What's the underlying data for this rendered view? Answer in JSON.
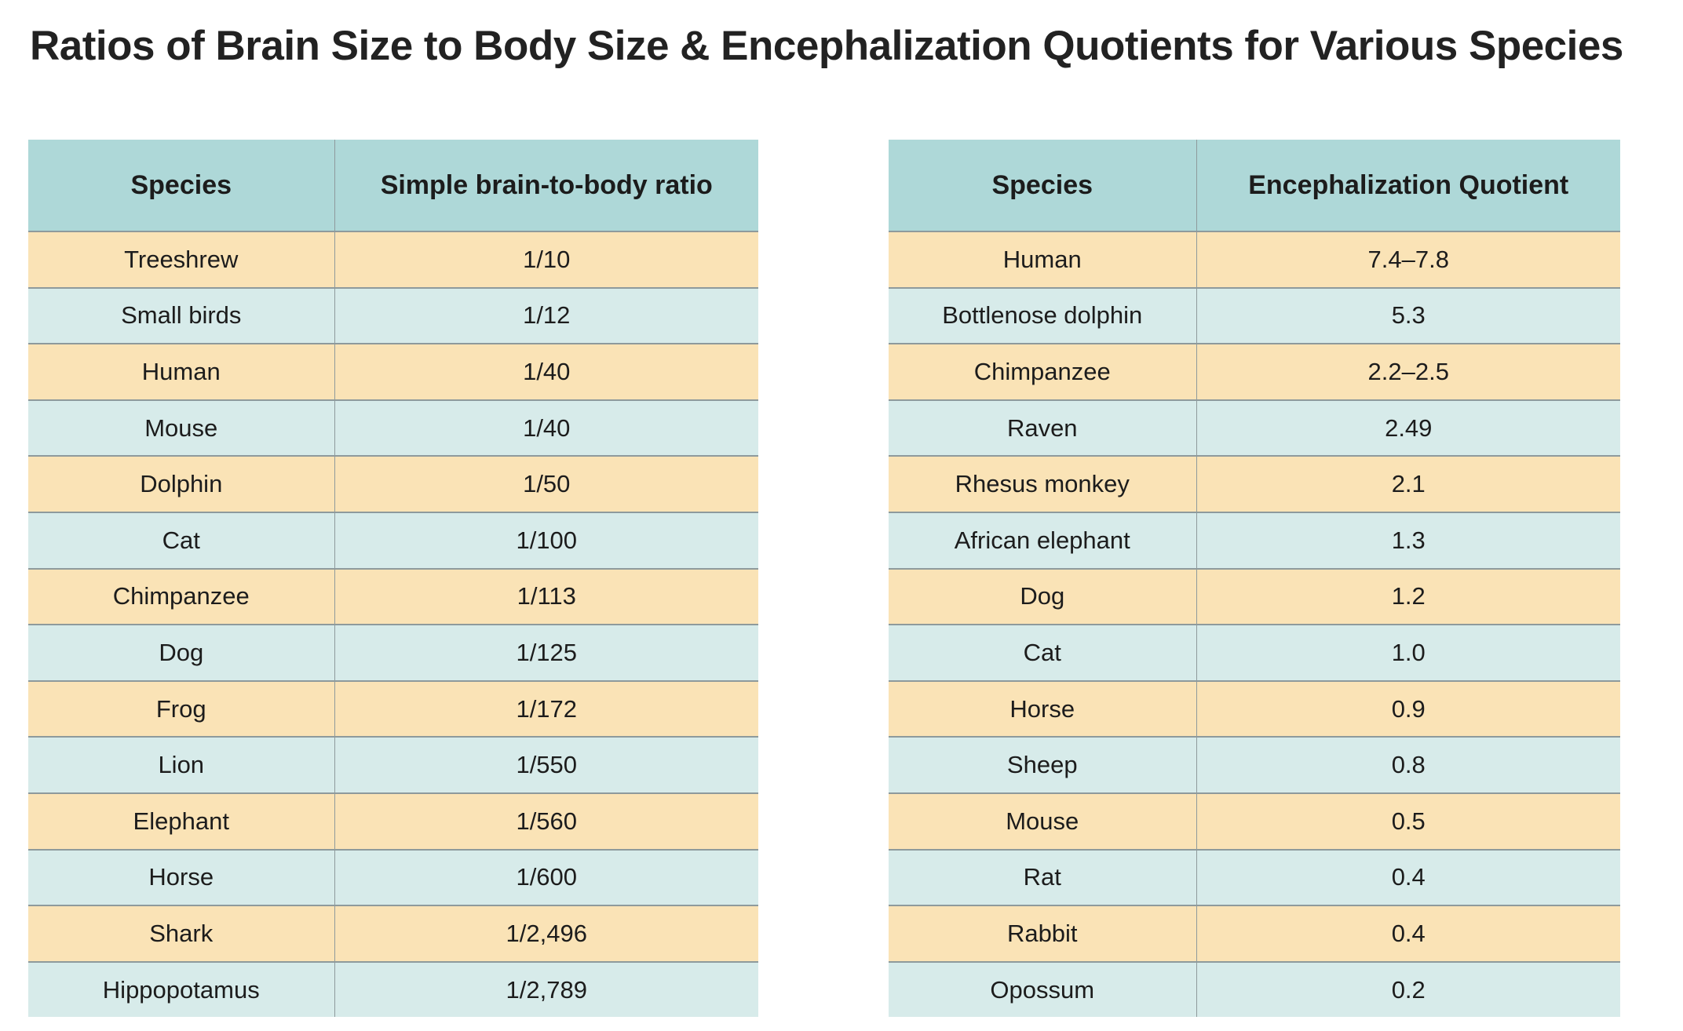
{
  "title": "Ratios of Brain Size to Body Size & Encephalization Quotients for Various Species",
  "colors": {
    "header": "#aed8d8",
    "row_odd": "#fae3b6",
    "row_even": "#d7ebea"
  },
  "ratio_table": {
    "headers": [
      "Species",
      "Simple brain-to-body ratio"
    ],
    "rows": [
      [
        "Treeshrew",
        "1/10"
      ],
      [
        "Small birds",
        "1/12"
      ],
      [
        "Human",
        "1/40"
      ],
      [
        "Mouse",
        "1/40"
      ],
      [
        "Dolphin",
        "1/50"
      ],
      [
        "Cat",
        "1/100"
      ],
      [
        "Chimpanzee",
        "1/113"
      ],
      [
        "Dog",
        "1/125"
      ],
      [
        "Frog",
        "1/172"
      ],
      [
        "Lion",
        "1/550"
      ],
      [
        "Elephant",
        "1/560"
      ],
      [
        "Horse",
        "1/600"
      ],
      [
        "Shark",
        "1/2,496"
      ],
      [
        "Hippopotamus",
        "1/2,789"
      ]
    ]
  },
  "eq_table": {
    "headers": [
      "Species",
      "Encephalization Quotient"
    ],
    "rows": [
      [
        "Human",
        "7.4–7.8"
      ],
      [
        "Bottlenose dolphin",
        "5.3"
      ],
      [
        "Chimpanzee",
        "2.2–2.5"
      ],
      [
        "Raven",
        "2.49"
      ],
      [
        "Rhesus monkey",
        "2.1"
      ],
      [
        "African elephant",
        "1.3"
      ],
      [
        "Dog",
        "1.2"
      ],
      [
        "Cat",
        "1.0"
      ],
      [
        "Horse",
        "0.9"
      ],
      [
        "Sheep",
        "0.8"
      ],
      [
        "Mouse",
        "0.5"
      ],
      [
        "Rat",
        "0.4"
      ],
      [
        "Rabbit",
        "0.4"
      ],
      [
        "Opossum",
        "0.2"
      ]
    ]
  }
}
